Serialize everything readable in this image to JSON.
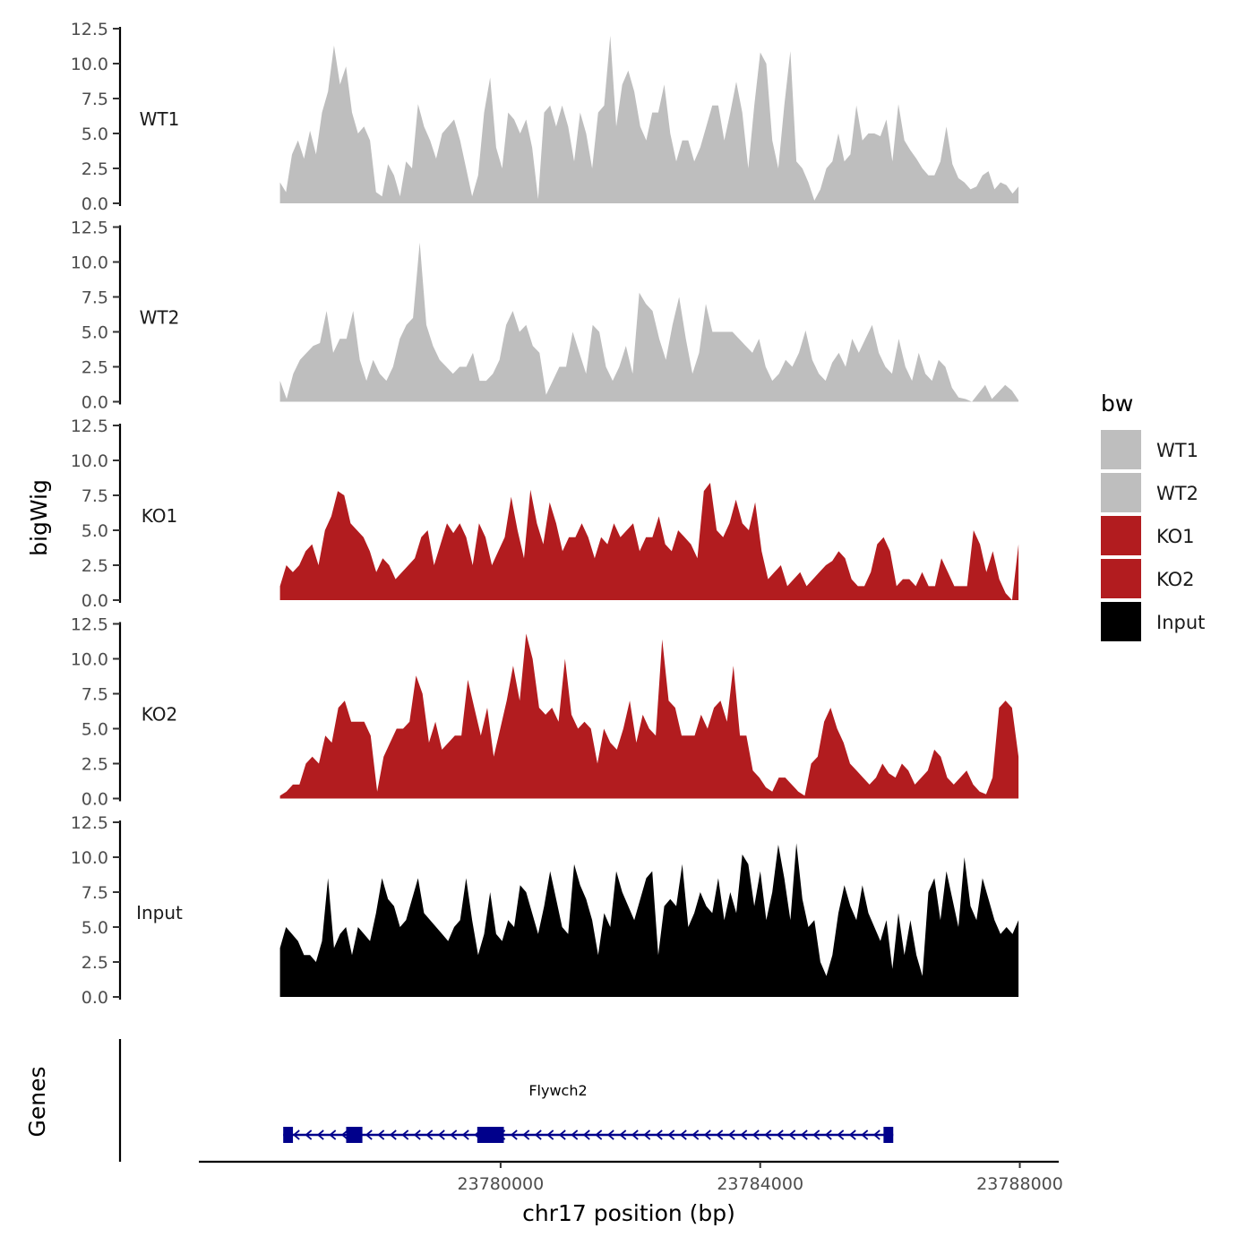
{
  "chart_data": {
    "type": "area",
    "title": "",
    "ylabel": "bigWig",
    "xlabel": "chr17 position (bp)",
    "chromosome": "chr17",
    "xlim": [
      23775350,
      23788600
    ],
    "data_range": [
      23776600,
      23787980
    ],
    "ylim": [
      0,
      12.5
    ],
    "y_ticks": [
      0,
      2.5,
      5,
      7.5,
      10,
      12.5
    ],
    "y_tick_labels": [
      "0.0",
      "2.5",
      "5.0",
      "7.5",
      "10.0",
      "12.5"
    ],
    "x_ticks": [
      23780000,
      23784000,
      23788000
    ],
    "x_tick_labels": [
      "23780000",
      "23784000",
      "23788000"
    ],
    "legend": {
      "title": "bw",
      "position": "right",
      "entries": [
        {
          "label": "WT1",
          "color": "#bebebe"
        },
        {
          "label": "WT2",
          "color": "#bebebe"
        },
        {
          "label": "KO1",
          "color": "#b21c1f"
        },
        {
          "label": "KO2",
          "color": "#b21c1f"
        },
        {
          "label": "Input",
          "color": "#000000"
        }
      ]
    },
    "series": [
      {
        "name": "WT1",
        "color": "#bebebe",
        "values": [
          1.5,
          0.8,
          3.5,
          4.5,
          3.2,
          5.2,
          3.5,
          6.5,
          8.0,
          11.3,
          8.5,
          9.8,
          6.5,
          5.0,
          5.5,
          4.5,
          0.8,
          0.5,
          2.8,
          2.0,
          0.5,
          3.0,
          2.5,
          7.1,
          5.5,
          4.5,
          3.2,
          5.0,
          5.5,
          6.0,
          4.5,
          2.5,
          0.5,
          2.0,
          6.5,
          9.0,
          4.0,
          2.5,
          6.5,
          6.0,
          5.0,
          6.0,
          4.0,
          0.3,
          6.5,
          7.0,
          5.5,
          7.0,
          5.5,
          3.0,
          6.5,
          5.0,
          2.5,
          6.5,
          7.0,
          12.0,
          5.5,
          8.5,
          9.5,
          8.0,
          5.5,
          4.5,
          6.5,
          6.5,
          8.5,
          5.0,
          3.0,
          4.5,
          4.5,
          3.0,
          4.0,
          5.5,
          7.0,
          7.0,
          4.5,
          6.5,
          8.7,
          6.5,
          2.5,
          7.0,
          10.8,
          10.0,
          4.5,
          2.5,
          7.0,
          10.9,
          3.0,
          2.5,
          1.5,
          0.2,
          1.0,
          2.5,
          3.0,
          5.0,
          3.0,
          3.5,
          7.0,
          4.5,
          5.0,
          5.0,
          4.8,
          6.0,
          3.0,
          7.1,
          4.5,
          3.8,
          3.2,
          2.5,
          2.0,
          2.0,
          3.0,
          5.5,
          2.8,
          1.8,
          1.5,
          1.0,
          1.2,
          2.0,
          2.3,
          1.0,
          1.5,
          1.3,
          0.7,
          1.2
        ]
      },
      {
        "name": "WT2",
        "color": "#bebebe",
        "values": [
          1.5,
          0.2,
          2.0,
          3.0,
          3.5,
          4.0,
          4.2,
          6.5,
          3.5,
          4.5,
          4.5,
          6.5,
          3.0,
          1.5,
          3.0,
          2.0,
          1.5,
          2.5,
          4.5,
          5.5,
          6.0,
          11.4,
          5.5,
          4.0,
          3.0,
          2.5,
          2.0,
          2.5,
          2.5,
          3.5,
          1.5,
          1.5,
          2.0,
          3.0,
          5.5,
          6.5,
          5.0,
          5.5,
          4.0,
          3.5,
          0.5,
          1.5,
          2.5,
          2.5,
          5.0,
          3.5,
          2.0,
          5.5,
          5.0,
          2.5,
          1.5,
          2.5,
          4.0,
          2.0,
          7.8,
          7.0,
          6.5,
          4.5,
          3.0,
          5.5,
          7.5,
          4.5,
          2.0,
          3.5,
          7.0,
          5.0,
          5.0,
          5.0,
          5.0,
          4.5,
          4.0,
          3.5,
          4.5,
          2.5,
          1.5,
          2.0,
          3.0,
          2.5,
          3.5,
          5.1,
          3.0,
          2.0,
          1.5,
          2.8,
          3.5,
          2.5,
          4.5,
          3.5,
          4.5,
          5.5,
          3.5,
          2.5,
          2.0,
          4.5,
          2.5,
          1.5,
          3.5,
          2.0,
          1.5,
          3.0,
          2.5,
          1.0,
          0.3,
          0.2,
          0.0,
          0.6,
          1.2,
          0.2,
          0.7,
          1.2,
          0.8,
          0.1
        ]
      },
      {
        "name": "KO1",
        "color": "#b21c1f",
        "values": [
          1.0,
          2.5,
          2.0,
          2.5,
          3.5,
          4.0,
          2.5,
          5.0,
          6.0,
          7.8,
          7.5,
          5.5,
          5.0,
          4.5,
          3.5,
          2.0,
          3.0,
          2.5,
          1.5,
          2.0,
          2.5,
          3.0,
          4.5,
          5.0,
          2.5,
          4.0,
          5.5,
          4.8,
          5.5,
          4.5,
          2.5,
          5.5,
          4.5,
          2.5,
          3.5,
          4.5,
          7.4,
          5.0,
          3.0,
          7.9,
          5.5,
          4.0,
          7.0,
          5.5,
          3.5,
          4.5,
          4.5,
          5.5,
          4.5,
          3.0,
          4.5,
          4.0,
          5.5,
          4.5,
          5.0,
          5.5,
          3.5,
          4.5,
          4.5,
          6.0,
          4.0,
          3.5,
          5.0,
          4.5,
          4.0,
          3.0,
          7.8,
          8.4,
          5.0,
          4.5,
          5.5,
          7.2,
          5.5,
          5.0,
          7.0,
          3.5,
          1.5,
          2.0,
          2.5,
          1.0,
          1.5,
          2.0,
          1.0,
          1.5,
          2.0,
          2.5,
          2.8,
          3.5,
          3.0,
          1.5,
          1.0,
          1.0,
          2.0,
          4.0,
          4.5,
          3.5,
          1.0,
          1.5,
          1.5,
          1.0,
          2.0,
          1.0,
          1.0,
          3.0,
          2.0,
          1.0,
          1.0,
          1.0,
          5.0,
          4.0,
          2.0,
          3.5,
          1.5,
          0.5,
          0.0,
          4.0
        ]
      },
      {
        "name": "KO2",
        "color": "#b21c1f",
        "values": [
          0.2,
          0.5,
          1.0,
          1.0,
          2.5,
          3.0,
          2.5,
          4.5,
          4.0,
          6.5,
          7.0,
          5.5,
          5.5,
          5.5,
          4.5,
          0.5,
          3.0,
          4.0,
          5.0,
          5.0,
          5.5,
          8.8,
          7.5,
          4.0,
          5.5,
          3.5,
          4.0,
          4.5,
          4.5,
          8.5,
          6.5,
          4.5,
          6.5,
          3.0,
          5.0,
          7.0,
          9.5,
          7.0,
          11.8,
          10.0,
          6.5,
          6.0,
          6.5,
          5.5,
          10.0,
          6.0,
          5.0,
          5.5,
          5.0,
          2.5,
          5.0,
          4.0,
          3.5,
          5.0,
          7.0,
          4.0,
          6.0,
          5.0,
          4.5,
          11.4,
          7.0,
          6.5,
          4.5,
          4.5,
          4.5,
          6.0,
          5.0,
          6.5,
          7.0,
          5.5,
          9.5,
          4.5,
          4.5,
          2.0,
          1.5,
          0.8,
          0.5,
          1.5,
          1.5,
          1.0,
          0.5,
          0.2,
          2.5,
          3.0,
          5.5,
          6.5,
          5.0,
          4.0,
          2.5,
          2.0,
          1.5,
          1.0,
          1.5,
          2.5,
          1.8,
          1.5,
          2.5,
          2.0,
          1.0,
          1.5,
          2.0,
          3.5,
          3.0,
          1.5,
          1.0,
          1.5,
          2.0,
          1.0,
          0.5,
          0.3,
          1.5,
          6.5,
          7.0,
          6.5,
          3.0
        ]
      },
      {
        "name": "Input",
        "color": "#000000",
        "values": [
          3.5,
          5.0,
          4.5,
          4.0,
          3.0,
          3.0,
          2.5,
          4.0,
          8.5,
          3.5,
          4.5,
          5.0,
          3.0,
          5.0,
          4.5,
          4.0,
          6.0,
          8.5,
          7.0,
          6.5,
          5.0,
          5.5,
          7.0,
          8.5,
          6.0,
          5.5,
          5.0,
          4.5,
          4.0,
          5.0,
          5.5,
          8.5,
          5.5,
          3.0,
          4.5,
          7.5,
          4.5,
          4.0,
          5.5,
          5.0,
          8.0,
          7.5,
          6.0,
          4.5,
          6.5,
          9.0,
          7.0,
          5.0,
          4.5,
          9.5,
          8.0,
          7.0,
          5.5,
          3.0,
          6.0,
          5.0,
          9.0,
          7.5,
          6.5,
          5.5,
          7.0,
          8.5,
          9.0,
          3.0,
          6.5,
          7.0,
          6.5,
          9.5,
          5.0,
          6.0,
          7.5,
          6.5,
          6.0,
          8.5,
          5.5,
          7.5,
          6.0,
          10.2,
          9.5,
          6.5,
          9.0,
          5.5,
          7.5,
          10.9,
          8.5,
          5.5,
          11.0,
          7.0,
          5.0,
          5.5,
          2.5,
          1.5,
          3.0,
          6.0,
          8.0,
          6.5,
          5.5,
          8.0,
          6.0,
          5.0,
          4.0,
          5.5,
          2.0,
          6.0,
          3.0,
          5.5,
          3.0,
          1.5,
          7.5,
          8.5,
          5.5,
          9.0,
          7.0,
          5.0,
          10.0,
          6.5,
          5.5,
          8.5,
          7.0,
          5.5,
          4.5,
          5.0,
          4.5,
          5.5
        ]
      }
    ],
    "gene_track": {
      "ylabel": "Genes",
      "gene": "Flywch2",
      "strand": "-",
      "start": 23776650,
      "end": 23786050,
      "exons": [
        [
          23776650,
          23776800
        ],
        [
          23777620,
          23777870
        ],
        [
          23779640,
          23780050
        ],
        [
          23785900,
          23786050
        ]
      ],
      "color": "#00008b"
    }
  }
}
